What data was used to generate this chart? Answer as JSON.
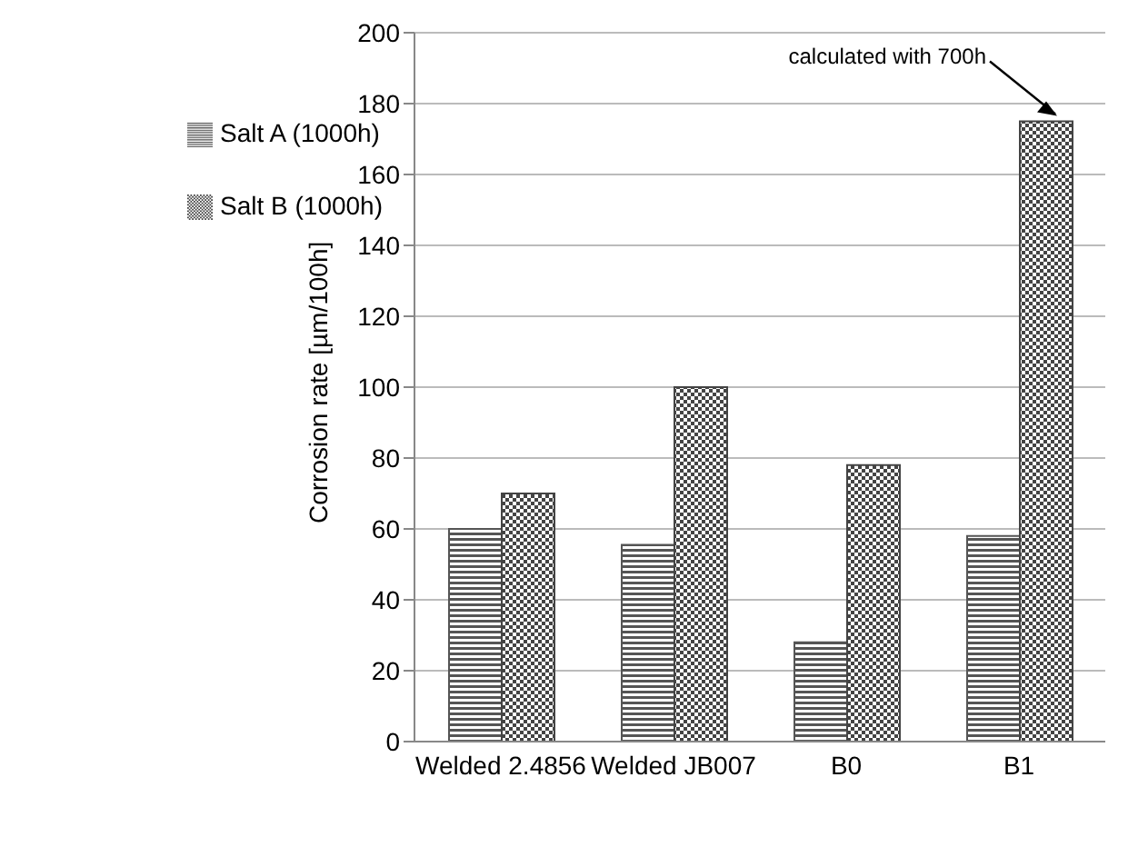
{
  "chart_data": {
    "type": "bar",
    "ylabel": "Corrosion rate [µm/100h]",
    "categories": [
      "Welded 2.4856",
      "Welded JB007",
      "B0",
      "B1"
    ],
    "series": [
      {
        "name": "Salt A (1000h)",
        "color": "#555555",
        "values": [
          60,
          55.5,
          28,
          58
        ]
      },
      {
        "name": "Salt B (1000h)",
        "color": "#444444",
        "values": [
          70,
          100,
          78,
          175
        ]
      }
    ],
    "ylim": [
      0,
      200
    ],
    "yticks": [
      0,
      20,
      40,
      60,
      80,
      100,
      120,
      140,
      160,
      180,
      200
    ],
    "grid": "y",
    "legend": "top left",
    "annotations": [
      {
        "text": "calculated with 700h",
        "x": "B1",
        "y": 175
      }
    ]
  }
}
